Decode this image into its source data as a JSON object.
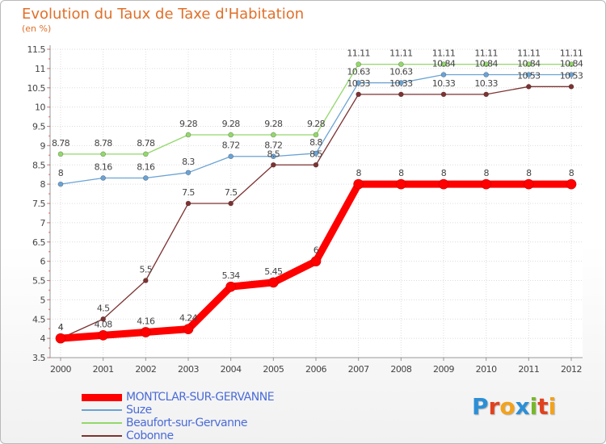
{
  "chart_data": {
    "type": "line",
    "title": "Evolution du Taux de Taxe d'Habitation",
    "ylabel": "(en %)",
    "xlabel": "",
    "x": [
      "2000",
      "2001",
      "2002",
      "2003",
      "2004",
      "2005",
      "2006",
      "2007",
      "2008",
      "2009",
      "2010",
      "2011",
      "2012"
    ],
    "ylim": [
      3.5,
      11.5
    ],
    "yticks": [
      "3.5",
      "4",
      "4.5",
      "5",
      "5.5",
      "6",
      "6.5",
      "7",
      "7.5",
      "8",
      "8.5",
      "9",
      "9.5",
      "10",
      "10.5",
      "11",
      "11.5"
    ],
    "series": [
      {
        "name": "MONTCLAR-SUR-GERVANNE",
        "color": "#ff0000",
        "values": [
          4,
          4.08,
          4.16,
          4.24,
          5.34,
          5.45,
          6,
          8,
          8,
          8,
          8,
          8,
          8
        ],
        "labels": [
          "4",
          "4.08",
          "4.16",
          "4.24",
          "5.34",
          "5.45",
          "6",
          "8",
          "8",
          "8",
          "8",
          "8",
          "8"
        ]
      },
      {
        "name": "Suze",
        "color": "#6aa3d4",
        "values": [
          8,
          8.16,
          8.16,
          8.3,
          8.72,
          8.72,
          8.8,
          10.63,
          10.63,
          10.84,
          10.84,
          10.84,
          10.84
        ],
        "labels": [
          "8",
          "8.16",
          "8.16",
          "8.3",
          "8.72",
          "8.72",
          "8.8",
          "10.63",
          "10.63",
          "10.84",
          "10.84",
          "10.84",
          "10.84"
        ]
      },
      {
        "name": "Beaufort-sur-Gervanne",
        "color": "#93d86b",
        "values": [
          8.78,
          8.78,
          8.78,
          9.28,
          9.28,
          9.28,
          9.28,
          11.11,
          11.11,
          11.11,
          11.11,
          11.11,
          11.11
        ],
        "labels": [
          "8.78",
          "8.78",
          "8.78",
          "9.28",
          "9.28",
          "9.28",
          "9.28",
          "11.11",
          "11.11",
          "11.11",
          "11.11",
          "11.11",
          "11.11"
        ]
      },
      {
        "name": "Cobonne",
        "color": "#7d3232",
        "values": [
          4,
          4.5,
          5.5,
          7.5,
          7.5,
          8.5,
          8.5,
          10.33,
          10.33,
          10.33,
          10.33,
          10.53,
          10.53
        ],
        "labels": [
          "4",
          "4.5",
          "5.5",
          "7.5",
          "7.5",
          "8.5",
          "8.5",
          "10.33",
          "10.33",
          "10.33",
          "10.33",
          "10.53",
          "10.53"
        ]
      }
    ],
    "legend_position": "bottom-left"
  },
  "legend": {
    "entries": [
      {
        "label": "MONTCLAR-SUR-GERVANNE",
        "color": "#ff0000",
        "text_color": "#4a6bd8"
      },
      {
        "label": "Suze",
        "color": "#6aa3d4",
        "text_color": "#4a6bd8"
      },
      {
        "label": "Beaufort-sur-Gervanne",
        "color": "#93d86b",
        "text_color": "#4a6bd8"
      },
      {
        "label": "Cobonne",
        "color": "#7d3232",
        "text_color": "#4a6bd8"
      }
    ]
  },
  "logo": {
    "letters": [
      {
        "ch": "P",
        "color": "#2c8fd6"
      },
      {
        "ch": "r",
        "color": "#e1411e"
      },
      {
        "ch": "o",
        "color": "#f2a21c"
      },
      {
        "ch": "x",
        "color": "#2c8fd6"
      },
      {
        "ch": "i",
        "color": "#77b82a"
      },
      {
        "ch": "t",
        "color": "#e1411e"
      },
      {
        "ch": "i",
        "color": "#f2a21c"
      }
    ],
    "text": "Proxiti"
  }
}
